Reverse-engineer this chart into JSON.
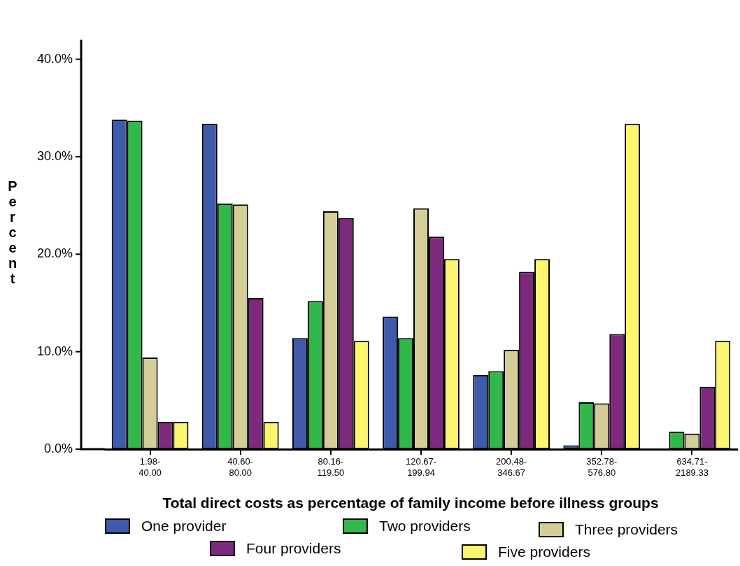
{
  "chart_data": {
    "type": "bar",
    "xlabel": "Total direct costs as percentage of family income before illness groups",
    "ylabel": "Percent",
    "categories": [
      "1.98-40.00",
      "40.60-80.00",
      "80.16-119.50",
      "120.67-199.94",
      "200.48-346.67",
      "352.78-576.80",
      "634.71-2189.33"
    ],
    "series": [
      {
        "name": "One provider",
        "color": "#3f5aab",
        "values": [
          33.8,
          33.4,
          11.4,
          13.6,
          7.6,
          0.4,
          0
        ]
      },
      {
        "name": "Two providers",
        "color": "#31b84a",
        "values": [
          33.7,
          25.2,
          15.2,
          11.4,
          8.0,
          4.8,
          1.8
        ]
      },
      {
        "name": "Three providers",
        "color": "#d4cd98",
        "values": [
          9.4,
          25.1,
          24.4,
          24.7,
          10.2,
          4.7,
          1.6
        ]
      },
      {
        "name": "Four providers",
        "color": "#7d297d",
        "values": [
          2.8,
          15.5,
          23.7,
          21.8,
          18.2,
          11.8,
          6.4
        ]
      },
      {
        "name": "Five providers",
        "color": "#fbf56f",
        "values": [
          2.8,
          2.8,
          11.1,
          19.5,
          19.5,
          33.4,
          11.1
        ]
      }
    ],
    "ylim": [
      0,
      42
    ],
    "yticks": [
      {
        "value": 0,
        "label": "0.0%"
      },
      {
        "value": 10,
        "label": "10.0%"
      },
      {
        "value": 20,
        "label": "20.0%"
      },
      {
        "value": 30,
        "label": "30.0%"
      },
      {
        "value": 40,
        "label": "40.0%"
      }
    ],
    "grid": false,
    "legend": "bottom"
  }
}
